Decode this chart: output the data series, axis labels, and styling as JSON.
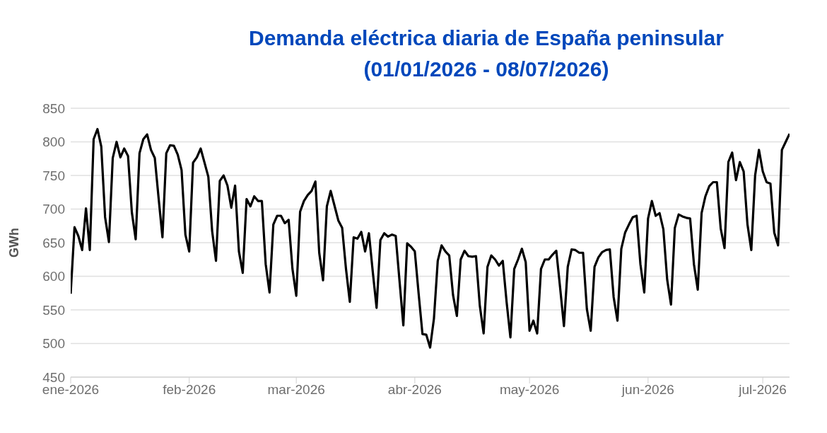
{
  "chart_data": {
    "type": "line",
    "title": "Demanda eléctrica diaria de España peninsular\n(01/01/2026 - 08/07/2026)",
    "ylabel": "GWh",
    "xlim": [
      "2026-01-01",
      "2026-07-08"
    ],
    "xticks": [
      {
        "value": "2026-01-01",
        "label": "ene-2026"
      },
      {
        "value": "2026-02-01",
        "label": "feb-2026"
      },
      {
        "value": "2026-03-01",
        "label": "mar-2026"
      },
      {
        "value": "2026-04-01",
        "label": "abr-2026"
      },
      {
        "value": "2026-05-01",
        "label": "may-2026"
      },
      {
        "value": "2026-06-01",
        "label": "jun-2026"
      },
      {
        "value": "2026-07-01",
        "label": "jul-2026"
      }
    ],
    "ylim": [
      450,
      850
    ],
    "yticks": [
      450,
      500,
      550,
      600,
      650,
      700,
      750,
      800,
      850
    ],
    "grid": "y",
    "marker": "none",
    "line_style": "solid",
    "x": [
      "2026-01-01",
      "2026-01-02",
      "2026-01-03",
      "2026-01-04",
      "2026-01-05",
      "2026-01-06",
      "2026-01-07",
      "2026-01-08",
      "2026-01-09",
      "2026-01-10",
      "2026-01-11",
      "2026-01-12",
      "2026-01-13",
      "2026-01-14",
      "2026-01-15",
      "2026-01-16",
      "2026-01-17",
      "2026-01-18",
      "2026-01-19",
      "2026-01-20",
      "2026-01-21",
      "2026-01-22",
      "2026-01-23",
      "2026-01-24",
      "2026-01-25",
      "2026-01-26",
      "2026-01-27",
      "2026-01-28",
      "2026-01-29",
      "2026-01-30",
      "2026-01-31",
      "2026-02-01",
      "2026-02-02",
      "2026-02-03",
      "2026-02-04",
      "2026-02-05",
      "2026-02-06",
      "2026-02-07",
      "2026-02-08",
      "2026-02-09",
      "2026-02-10",
      "2026-02-11",
      "2026-02-12",
      "2026-02-13",
      "2026-02-14",
      "2026-02-15",
      "2026-02-16",
      "2026-02-17",
      "2026-02-18",
      "2026-02-19",
      "2026-02-20",
      "2026-02-21",
      "2026-02-22",
      "2026-02-23",
      "2026-02-24",
      "2026-02-25",
      "2026-02-26",
      "2026-02-27",
      "2026-02-28",
      "2026-03-01",
      "2026-03-02",
      "2026-03-03",
      "2026-03-04",
      "2026-03-05",
      "2026-03-06",
      "2026-03-07",
      "2026-03-08",
      "2026-03-09",
      "2026-03-10",
      "2026-03-11",
      "2026-03-12",
      "2026-03-13",
      "2026-03-14",
      "2026-03-15",
      "2026-03-16",
      "2026-03-17",
      "2026-03-18",
      "2026-03-19",
      "2026-03-20",
      "2026-03-21",
      "2026-03-22",
      "2026-03-23",
      "2026-03-24",
      "2026-03-25",
      "2026-03-26",
      "2026-03-27",
      "2026-03-28",
      "2026-03-29",
      "2026-03-30",
      "2026-03-31",
      "2026-04-01",
      "2026-04-02",
      "2026-04-03",
      "2026-04-04",
      "2026-04-05",
      "2026-04-06",
      "2026-04-07",
      "2026-04-08",
      "2026-04-09",
      "2026-04-10",
      "2026-04-11",
      "2026-04-12",
      "2026-04-13",
      "2026-04-14",
      "2026-04-15",
      "2026-04-16",
      "2026-04-17",
      "2026-04-18",
      "2026-04-19",
      "2026-04-20",
      "2026-04-21",
      "2026-04-22",
      "2026-04-23",
      "2026-04-24",
      "2026-04-25",
      "2026-04-26",
      "2026-04-27",
      "2026-04-28",
      "2026-04-29",
      "2026-04-30",
      "2026-05-01",
      "2026-05-02",
      "2026-05-03",
      "2026-05-04",
      "2026-05-05",
      "2026-05-06",
      "2026-05-07",
      "2026-05-08",
      "2026-05-09",
      "2026-05-10",
      "2026-05-11",
      "2026-05-12",
      "2026-05-13",
      "2026-05-14",
      "2026-05-15",
      "2026-05-16",
      "2026-05-17",
      "2026-05-18",
      "2026-05-19",
      "2026-05-20",
      "2026-05-21",
      "2026-05-22",
      "2026-05-23",
      "2026-05-24",
      "2026-05-25",
      "2026-05-26",
      "2026-05-27",
      "2026-05-28",
      "2026-05-29",
      "2026-05-30",
      "2026-05-31",
      "2026-06-01",
      "2026-06-02",
      "2026-06-03",
      "2026-06-04",
      "2026-06-05",
      "2026-06-06",
      "2026-06-07",
      "2026-06-08",
      "2026-06-09",
      "2026-06-10",
      "2026-06-11",
      "2026-06-12",
      "2026-06-13",
      "2026-06-14",
      "2026-06-15",
      "2026-06-16",
      "2026-06-17",
      "2026-06-18",
      "2026-06-19",
      "2026-06-20",
      "2026-06-21",
      "2026-06-22",
      "2026-06-23",
      "2026-06-24",
      "2026-06-25",
      "2026-06-26",
      "2026-06-27",
      "2026-06-28",
      "2026-06-29",
      "2026-06-30",
      "2026-07-01",
      "2026-07-02",
      "2026-07-03",
      "2026-07-04",
      "2026-07-05",
      "2026-07-06",
      "2026-07-07",
      "2026-07-08"
    ],
    "series": [
      {
        "color": "#000000",
        "values": [
          574,
          673,
          660,
          639,
          701,
          639,
          804,
          819,
          793,
          688,
          651,
          776,
          800,
          777,
          790,
          779,
          695,
          655,
          783,
          804,
          811,
          788,
          776,
          716,
          658,
          783,
          795,
          794,
          781,
          758,
          662,
          637,
          769,
          777,
          790,
          769,
          748,
          667,
          623,
          742,
          750,
          735,
          702,
          735,
          637,
          605,
          715,
          704,
          719,
          712,
          712,
          618,
          576,
          677,
          690,
          690,
          679,
          684,
          611,
          571,
          696,
          712,
          721,
          727,
          741,
          635,
          594,
          704,
          727,
          705,
          683,
          672,
          611,
          562,
          658,
          656,
          666,
          637,
          664,
          607,
          553,
          654,
          664,
          659,
          662,
          660,
          593,
          527,
          649,
          644,
          637,
          574,
          514,
          513,
          494,
          537,
          623,
          646,
          637,
          631,
          572,
          541,
          625,
          638,
          630,
          629,
          630,
          556,
          515,
          614,
          631,
          625,
          616,
          623,
          562,
          509,
          611,
          625,
          641,
          621,
          519,
          534,
          515,
          611,
          625,
          625,
          632,
          638,
          583,
          526,
          614,
          640,
          639,
          635,
          635,
          551,
          519,
          614,
          628,
          636,
          639,
          640,
          569,
          534,
          641,
          665,
          677,
          688,
          690,
          618,
          576,
          686,
          712,
          690,
          694,
          670,
          595,
          558,
          672,
          692,
          689,
          687,
          686,
          618,
          580,
          694,
          719,
          734,
          740,
          740,
          671,
          642,
          770,
          784,
          743,
          770,
          756,
          677,
          639,
          750,
          788,
          756,
          740,
          738,
          665,
          646,
          788,
          800,
          812
        ]
      }
    ]
  }
}
